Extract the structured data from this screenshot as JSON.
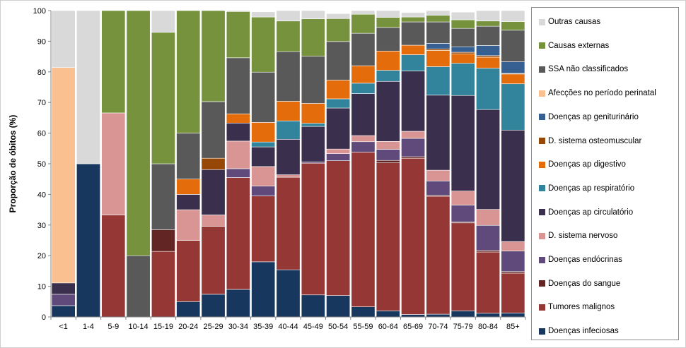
{
  "chart_data": {
    "type": "bar",
    "stacked": true,
    "percent_stacked": true,
    "xlabel": "",
    "ylabel": "Proporção de óbitos (%)",
    "ylim": [
      0,
      100
    ],
    "yticks": [
      0,
      10,
      20,
      30,
      40,
      50,
      60,
      70,
      80,
      90,
      100
    ],
    "grid": false,
    "legend_position": "right",
    "categories": [
      "<1",
      "1-4",
      "5-9",
      "10-14",
      "15-19",
      "20-24",
      "25-29",
      "30-34",
      "35-39",
      "40-44",
      "45-49",
      "50-54",
      "55-59",
      "60-64",
      "65-69",
      "70-74",
      "75-79",
      "80-84",
      "85+"
    ],
    "series": [
      {
        "name": "Doenças infeciosas",
        "color": "#17375e",
        "values": [
          3.7,
          50,
          0,
          0,
          0,
          5,
          7.4,
          9,
          18,
          15.4,
          7.2,
          7,
          3.3,
          2,
          0.8,
          0.9,
          2,
          1.2,
          1.3
        ]
      },
      {
        "name": "Tumores malignos",
        "color": "#953735",
        "values": [
          0,
          0,
          33.3,
          0,
          21.4,
          20,
          22.2,
          36.5,
          21.5,
          30.2,
          43,
          44,
          50.5,
          48.3,
          51,
          38.5,
          28.7,
          20,
          13
        ]
      },
      {
        "name": "Doenças do sangue",
        "color": "#632523",
        "values": [
          0,
          0,
          0,
          0,
          7.1,
          0,
          0,
          0,
          0,
          0,
          0,
          0,
          0,
          0.8,
          0.5,
          0.3,
          0.3,
          0.5,
          0.5
        ]
      },
      {
        "name": "Doenças endócrinas",
        "color": "#604a7b",
        "values": [
          3.7,
          0,
          0,
          0,
          0,
          0,
          0,
          2.9,
          3.2,
          0,
          0.4,
          2.3,
          3.4,
          3.6,
          6,
          4.7,
          5.5,
          8.2,
          6.7
        ]
      },
      {
        "name": "D. sistema nervoso",
        "color": "#d99594",
        "values": [
          0,
          0,
          33.3,
          0,
          0,
          10,
          3.7,
          9,
          6.4,
          0.8,
          0,
          1.5,
          2,
          2.6,
          2.3,
          3.5,
          4.6,
          5.2,
          3.1
        ]
      },
      {
        "name": "Doenças ap circulatório",
        "color": "#3b2f4e",
        "values": [
          3.7,
          0,
          0,
          0,
          0,
          5,
          14.8,
          5.9,
          6.4,
          11.6,
          11.6,
          13.4,
          13.7,
          19.6,
          19.7,
          24.5,
          31.2,
          32.6,
          36.4
        ]
      },
      {
        "name": "Doenças ap respiratório",
        "color": "#31849b",
        "values": [
          0,
          0,
          0,
          0,
          0,
          0,
          0,
          0,
          1.6,
          6,
          1,
          3,
          3.4,
          3.6,
          5.3,
          9.3,
          10.5,
          13.5,
          15.1
        ]
      },
      {
        "name": "Doenças ap digestivo",
        "color": "#e46c0a",
        "values": [
          0,
          0,
          0,
          0,
          0,
          5,
          0,
          3,
          6.4,
          6.4,
          6.5,
          6.1,
          5.7,
          6.3,
          3.1,
          5.3,
          3.1,
          3.6,
          3.2
        ]
      },
      {
        "name": "D. sistema osteomuscular",
        "color": "#974806",
        "values": [
          0,
          0,
          0,
          0,
          0,
          0,
          3.7,
          0,
          0,
          0,
          0,
          0,
          0,
          0,
          0,
          0.5,
          0.5,
          0.5,
          0.2
        ]
      },
      {
        "name": "Doenças ap geniturinário",
        "color": "#366092",
        "values": [
          0,
          0,
          0,
          0,
          0,
          0,
          0,
          0,
          0,
          0,
          0,
          0,
          0,
          0,
          0,
          1.8,
          1.8,
          3.3,
          3.8
        ]
      },
      {
        "name": "Afecções no período perinatal",
        "color": "#fac090",
        "values": [
          70.3,
          0,
          0,
          0,
          0,
          0,
          0,
          0,
          0,
          0,
          0,
          0,
          0,
          0,
          0,
          0,
          0,
          0,
          0
        ]
      },
      {
        "name": "SSA não classificados",
        "color": "#595959",
        "values": [
          0,
          0,
          0,
          20,
          21.5,
          15,
          18.5,
          18.3,
          16.4,
          16.2,
          15.4,
          12.6,
          10.6,
          7.7,
          7.6,
          7,
          6,
          6.3,
          10.3
        ]
      },
      {
        "name": "Causas externas",
        "color": "#76923c",
        "values": [
          0,
          0,
          33.4,
          80,
          42.9,
          40,
          29.7,
          15.1,
          18,
          10,
          12.2,
          7.5,
          6.2,
          3.3,
          1.6,
          2.2,
          2.8,
          1.7,
          2.8
        ]
      },
      {
        "name": "Outras causas",
        "color": "#d9d9d9",
        "values": [
          18.6,
          50,
          0,
          0,
          7.1,
          0,
          0,
          0.3,
          1.7,
          3.4,
          2.7,
          1.6,
          1.2,
          2.2,
          1.5,
          1.5,
          2.5,
          3.4,
          3.6
        ]
      }
    ],
    "legend_order": [
      "Outras causas",
      "Causas externas",
      "SSA não classificados",
      "Afecções no período perinatal",
      "Doenças ap geniturinário",
      "D. sistema osteomuscular",
      "Doenças ap digestivo",
      "Doenças ap respiratório",
      "Doenças ap circulatório",
      "D. sistema nervoso",
      "Doenças endócrinas",
      "Doenças do sangue",
      "Tumores malignos",
      "Doenças infeciosas"
    ]
  }
}
